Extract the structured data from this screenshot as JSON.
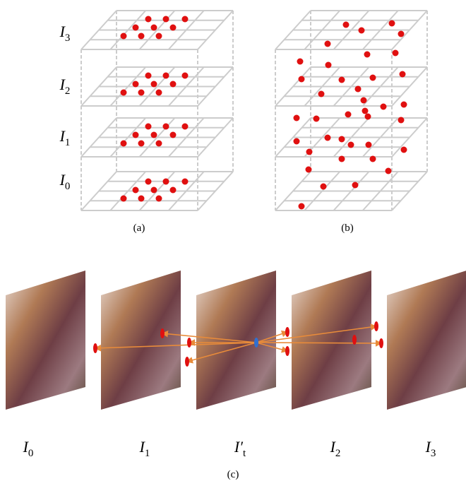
{
  "panel_a": {
    "layer_labels": [
      {
        "base": "I",
        "sub": "3"
      },
      {
        "base": "I",
        "sub": "2"
      },
      {
        "base": "I",
        "sub": "1"
      },
      {
        "base": "I",
        "sub": "0"
      }
    ],
    "caption": "(a)"
  },
  "panel_b": {
    "caption": "(b)"
  },
  "panel_c": {
    "frame_labels": [
      {
        "base": "I",
        "sub": "0"
      },
      {
        "base": "I",
        "sub": "1"
      },
      {
        "base": "I′",
        "sub": "t"
      },
      {
        "base": "I",
        "sub": "2"
      },
      {
        "base": "I",
        "sub": "3"
      }
    ],
    "caption": "(c)"
  }
}
